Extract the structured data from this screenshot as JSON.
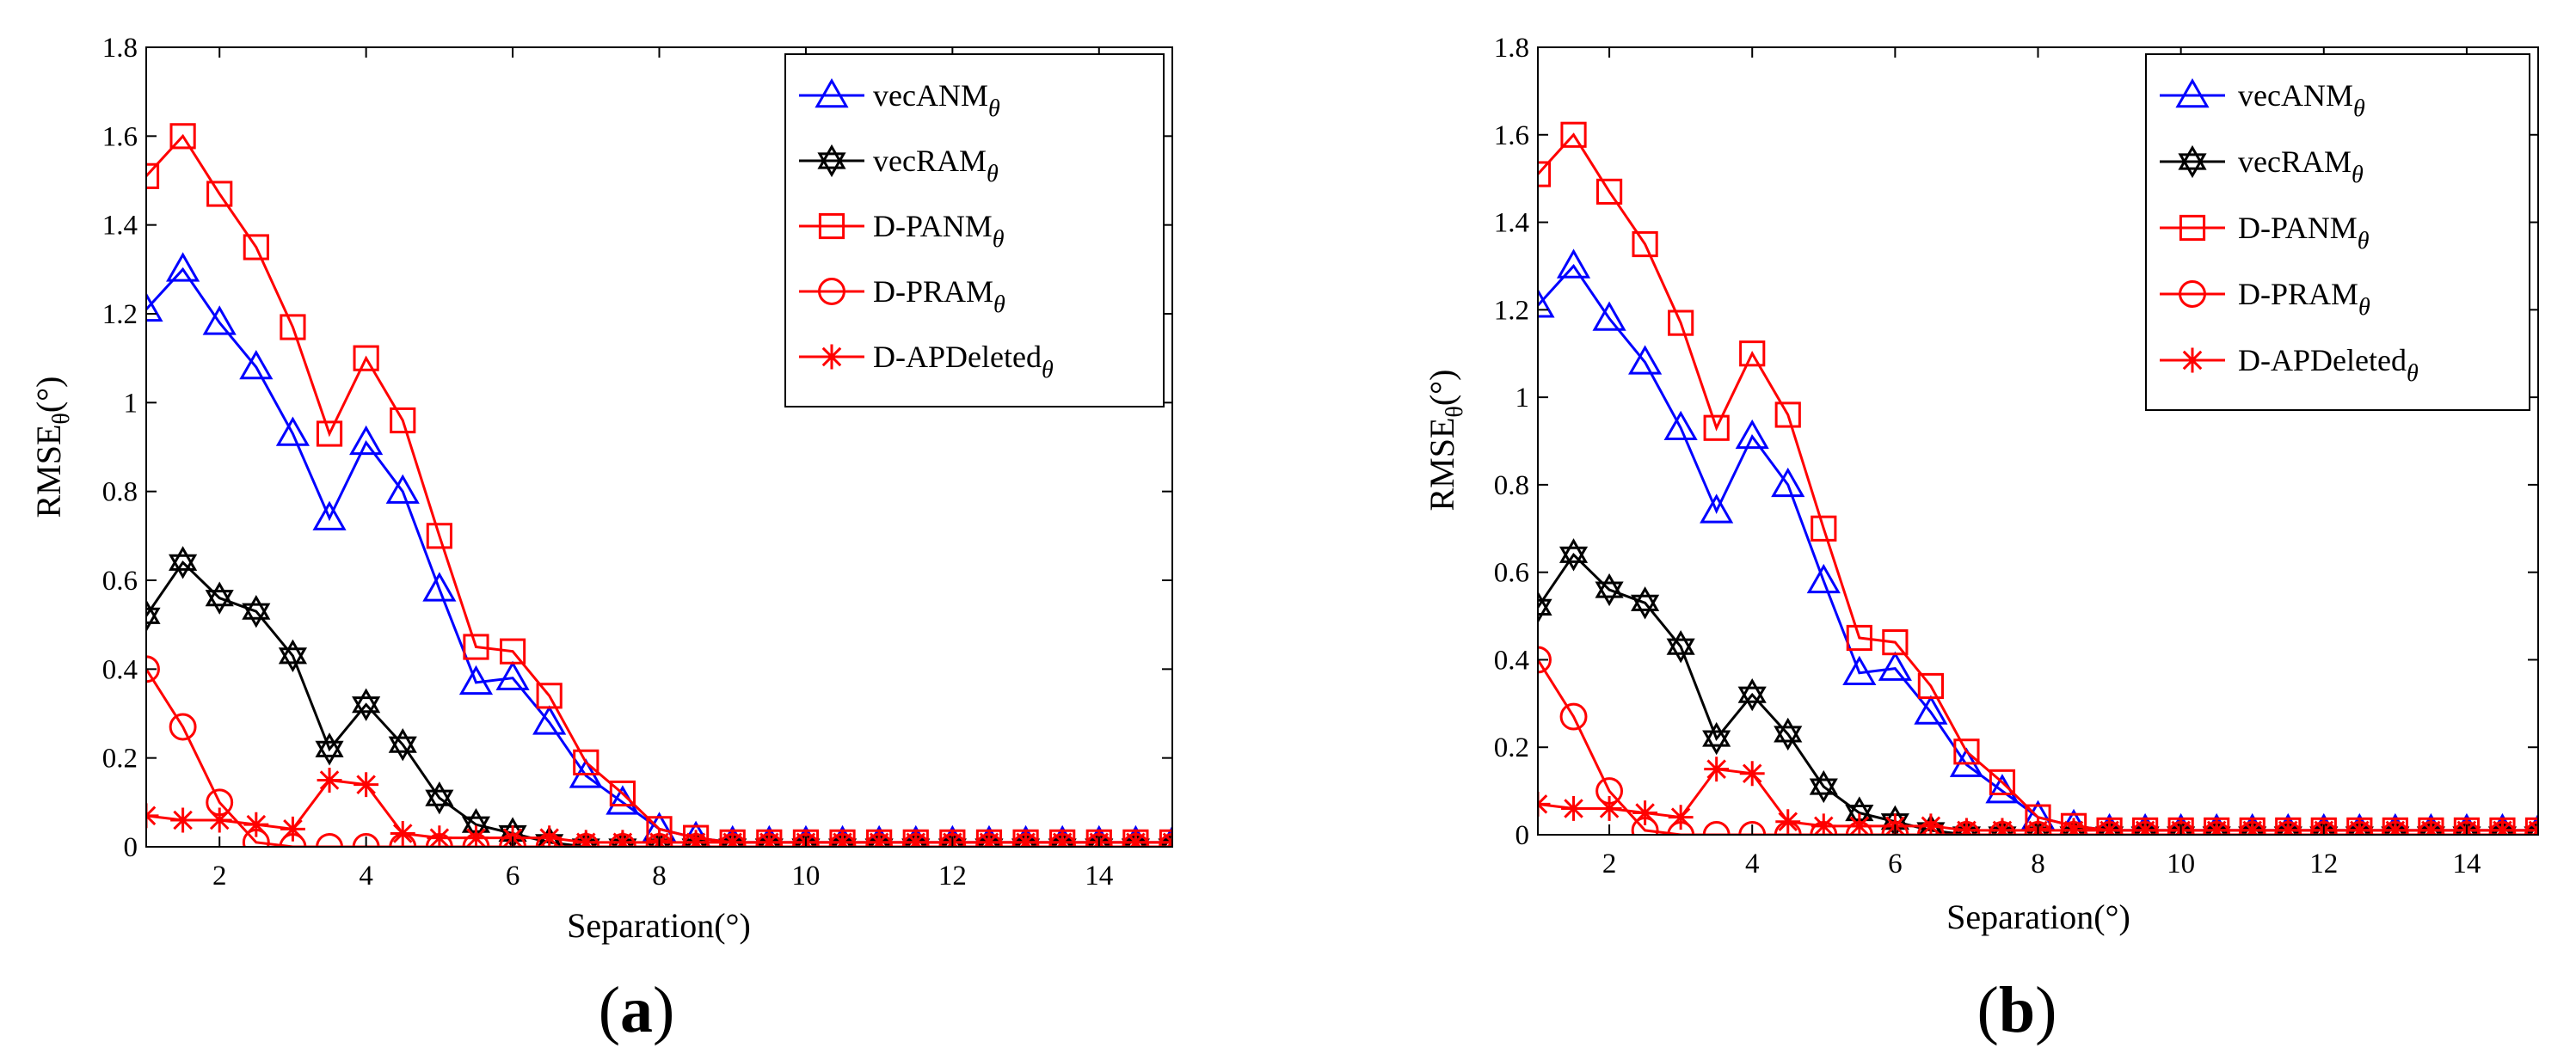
{
  "chart_data": [
    {
      "type": "line",
      "panel_label": {
        "open": "(",
        "letter": "a",
        "close": ")"
      },
      "xlabel": "Separation(°)",
      "ylabel": {
        "main": "RMSE",
        "sub": "θ",
        "tail": "(°)"
      },
      "xlim": [
        1,
        15
      ],
      "ylim": [
        0,
        1.8
      ],
      "xticks": [
        2,
        4,
        6,
        8,
        10,
        12,
        14
      ],
      "yticks": [
        0,
        0.2,
        0.4,
        0.6,
        0.8,
        1,
        1.2,
        1.4,
        1.6,
        1.8
      ],
      "ytick_labels": [
        "0",
        "0.2",
        "0.4",
        "0.6",
        "0.8",
        "1",
        "1.2",
        "1.4",
        "1.6",
        "1.8"
      ],
      "legend_position": "top-right",
      "x": [
        1,
        1.5,
        2,
        2.5,
        3,
        3.5,
        4,
        4.5,
        5,
        5.5,
        6,
        6.5,
        7,
        7.5,
        8,
        8.5,
        9,
        9.5,
        10,
        10.5,
        11,
        11.5,
        12,
        12.5,
        13,
        13.5,
        14,
        14.5,
        15
      ],
      "series": [
        {
          "name": "vecANM",
          "sub": "θ",
          "color": "#0000ff",
          "marker": "triangle",
          "values": [
            1.21,
            1.3,
            1.18,
            1.08,
            0.93,
            0.74,
            0.91,
            0.8,
            0.58,
            0.37,
            0.38,
            0.28,
            0.16,
            0.1,
            0.04,
            0.02,
            0.01,
            0.01,
            0.01,
            0.01,
            0.01,
            0.01,
            0.01,
            0.01,
            0.01,
            0.01,
            0.01,
            0.01,
            0.01
          ]
        },
        {
          "name": "vecRAM",
          "sub": "θ",
          "color": "#000000",
          "marker": "hexagram",
          "values": [
            0.52,
            0.64,
            0.56,
            0.53,
            0.43,
            0.22,
            0.32,
            0.23,
            0.11,
            0.05,
            0.03,
            0.01,
            0.0,
            0.0,
            0.0,
            0.0,
            0.0,
            0.0,
            0.0,
            0.0,
            0.0,
            0.0,
            0.0,
            0.0,
            0.0,
            0.0,
            0.0,
            0.0,
            0.0
          ]
        },
        {
          "name": "D-PANM",
          "sub": "θ",
          "color": "#ff0000",
          "marker": "square",
          "values": [
            1.51,
            1.6,
            1.47,
            1.35,
            1.17,
            0.93,
            1.1,
            0.96,
            0.7,
            0.45,
            0.44,
            0.34,
            0.19,
            0.12,
            0.04,
            0.02,
            0.01,
            0.01,
            0.01,
            0.01,
            0.01,
            0.01,
            0.01,
            0.01,
            0.01,
            0.01,
            0.01,
            0.01,
            0.01
          ]
        },
        {
          "name": "D-PRAM",
          "sub": "θ",
          "color": "#ff0000",
          "marker": "circle",
          "values": [
            0.4,
            0.27,
            0.1,
            0.01,
            0.0,
            0.0,
            0.0,
            0.0,
            0.0,
            0.0,
            0.0,
            0.0,
            0.0,
            0.0,
            0.0,
            0.0,
            0.0,
            0.0,
            0.0,
            0.0,
            0.0,
            0.0,
            0.0,
            0.0,
            0.0,
            0.0,
            0.0,
            0.0,
            0.0
          ]
        },
        {
          "name": "D-APDeleted",
          "sub": "θ",
          "color": "#ff0000",
          "marker": "asterisk",
          "values": [
            0.07,
            0.06,
            0.06,
            0.05,
            0.04,
            0.15,
            0.14,
            0.03,
            0.02,
            0.02,
            0.02,
            0.02,
            0.01,
            0.01,
            0.01,
            0.01,
            0.01,
            0.01,
            0.01,
            0.01,
            0.01,
            0.01,
            0.01,
            0.01,
            0.01,
            0.01,
            0.01,
            0.01,
            0.01
          ]
        }
      ]
    },
    {
      "type": "line",
      "panel_label": {
        "open": "(",
        "letter": "b",
        "close": ")"
      },
      "xlabel": "Separation(°)",
      "ylabel": {
        "main": "RMSE",
        "sub": "θ",
        "tail": "(°)"
      },
      "xlim": [
        1,
        15
      ],
      "ylim": [
        0,
        1.8
      ],
      "xticks": [
        2,
        4,
        6,
        8,
        10,
        12,
        14
      ],
      "yticks": [
        0,
        0.2,
        0.4,
        0.6,
        0.8,
        1,
        1.2,
        1.4,
        1.6,
        1.8
      ],
      "ytick_labels": [
        "0",
        "0.2",
        "0.4",
        "0.6",
        "0.8",
        "1",
        "1.2",
        "1.4",
        "1.6",
        "1.8"
      ],
      "legend_position": "top-right",
      "x": [
        1,
        1.5,
        2,
        2.5,
        3,
        3.5,
        4,
        4.5,
        5,
        5.5,
        6,
        6.5,
        7,
        7.5,
        8,
        8.5,
        9,
        9.5,
        10,
        10.5,
        11,
        11.5,
        12,
        12.5,
        13,
        13.5,
        14,
        14.5,
        15
      ],
      "series": [
        {
          "name": "vecANM",
          "sub": "θ",
          "color": "#0000ff",
          "marker": "triangle",
          "values": [
            1.21,
            1.3,
            1.18,
            1.08,
            0.93,
            0.74,
            0.91,
            0.8,
            0.58,
            0.37,
            0.38,
            0.28,
            0.16,
            0.1,
            0.04,
            0.02,
            0.01,
            0.01,
            0.01,
            0.01,
            0.01,
            0.01,
            0.01,
            0.01,
            0.01,
            0.01,
            0.01,
            0.01,
            0.01
          ]
        },
        {
          "name": "vecRAM",
          "sub": "θ",
          "color": "#000000",
          "marker": "hexagram",
          "values": [
            0.52,
            0.64,
            0.56,
            0.53,
            0.43,
            0.22,
            0.32,
            0.23,
            0.11,
            0.05,
            0.03,
            0.01,
            0.0,
            0.0,
            0.0,
            0.0,
            0.0,
            0.0,
            0.0,
            0.0,
            0.0,
            0.0,
            0.0,
            0.0,
            0.0,
            0.0,
            0.0,
            0.0,
            0.0
          ]
        },
        {
          "name": "D-PANM",
          "sub": "θ",
          "color": "#ff0000",
          "marker": "square",
          "values": [
            1.51,
            1.6,
            1.47,
            1.35,
            1.17,
            0.93,
            1.1,
            0.96,
            0.7,
            0.45,
            0.44,
            0.34,
            0.19,
            0.12,
            0.04,
            0.02,
            0.01,
            0.01,
            0.01,
            0.01,
            0.01,
            0.01,
            0.01,
            0.01,
            0.01,
            0.01,
            0.01,
            0.01,
            0.01
          ]
        },
        {
          "name": "D-PRAM",
          "sub": "θ",
          "color": "#ff0000",
          "marker": "circle",
          "values": [
            0.4,
            0.27,
            0.1,
            0.01,
            0.0,
            0.0,
            0.0,
            0.0,
            0.0,
            0.0,
            0.0,
            0.0,
            0.0,
            0.0,
            0.0,
            0.0,
            0.0,
            0.0,
            0.0,
            0.0,
            0.0,
            0.0,
            0.0,
            0.0,
            0.0,
            0.0,
            0.0,
            0.0,
            0.0
          ]
        },
        {
          "name": "D-APDeleted",
          "sub": "θ",
          "color": "#ff0000",
          "marker": "asterisk",
          "values": [
            0.07,
            0.06,
            0.06,
            0.05,
            0.04,
            0.15,
            0.14,
            0.03,
            0.02,
            0.02,
            0.02,
            0.02,
            0.01,
            0.01,
            0.01,
            0.01,
            0.01,
            0.01,
            0.01,
            0.01,
            0.01,
            0.01,
            0.01,
            0.01,
            0.01,
            0.01,
            0.01,
            0.01,
            0.01
          ]
        }
      ]
    }
  ]
}
